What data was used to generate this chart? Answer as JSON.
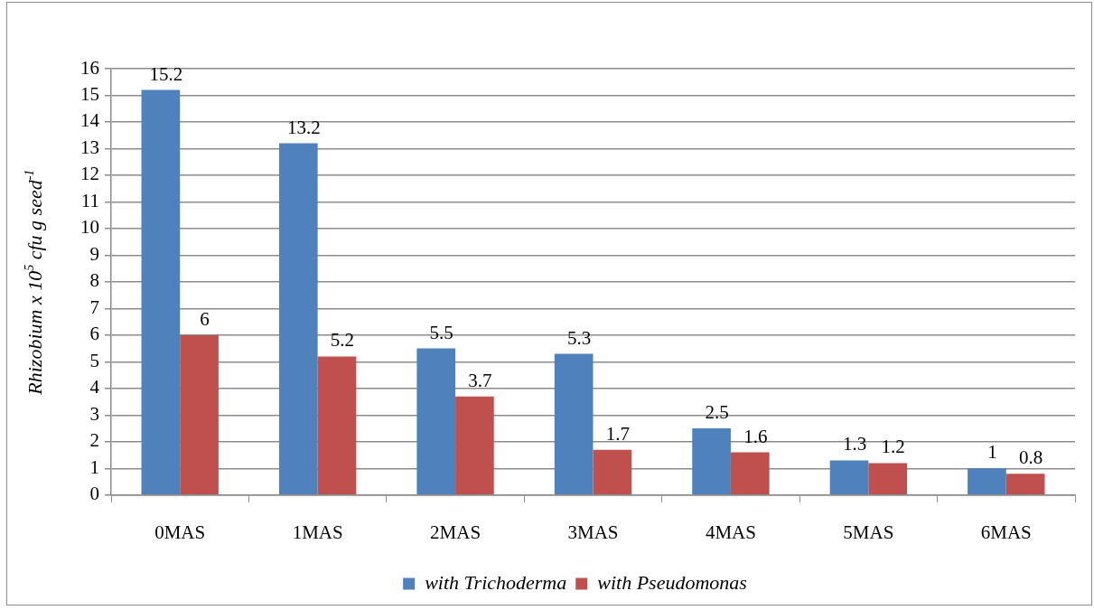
{
  "chart_data": {
    "type": "bar",
    "ylabel": "Rhizobium x 10$^{5}$ cfu g seed$^{-1}$",
    "categories": [
      "0MAS",
      "1MAS",
      "2MAS",
      "3MAS",
      "4MAS",
      "5MAS",
      "6MAS"
    ],
    "series": [
      {
        "name": "with Trichoderma",
        "color": "#4f81bd",
        "values": [
          15.2,
          13.2,
          5.5,
          5.3,
          2.5,
          1.3,
          1
        ]
      },
      {
        "name": "with Pseudomonas",
        "color": "#c0504d",
        "values": [
          6,
          5.2,
          3.7,
          1.7,
          1.6,
          1.2,
          0.8
        ]
      }
    ],
    "ylim": [
      0,
      16
    ],
    "yticks": [
      0,
      1,
      2,
      3,
      4,
      5,
      6,
      7,
      8,
      9,
      10,
      11,
      12,
      13,
      14,
      15,
      16
    ],
    "grid": "y",
    "legend": "bottom",
    "data_labels": true
  }
}
